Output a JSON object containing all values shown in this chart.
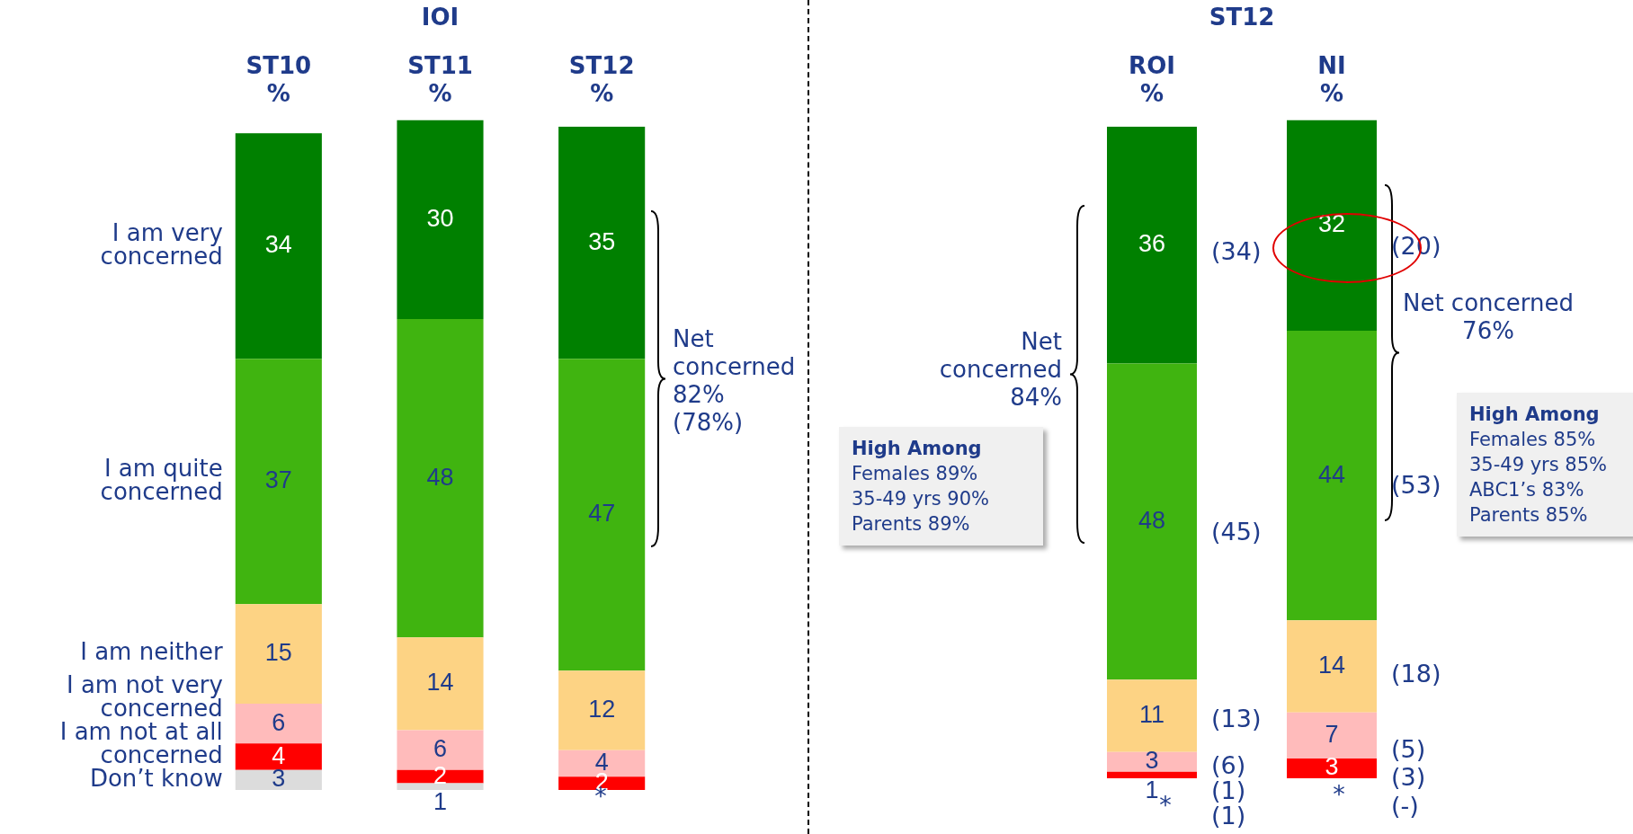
{
  "chart_data": [
    {
      "type": "bar",
      "title": "IOI",
      "categories": [
        "ST10\n%",
        "ST11\n%",
        "ST12\n%"
      ],
      "stacked": true,
      "tick_labels": "x",
      "series": [
        {
          "name": "Don’t know",
          "color": "#dcdcdc",
          "values": [
            3,
            1,
            null
          ],
          "value_labels": [
            "3",
            "1",
            null
          ]
        },
        {
          "name": "I am not at all concerned",
          "color": "#ff0000",
          "values": [
            4,
            2,
            2
          ],
          "value_labels": [
            "4",
            "2",
            "2"
          ]
        },
        {
          "name": "I am not very concerned",
          "color": "#ffbbbb",
          "values": [
            6,
            6,
            4
          ],
          "value_labels": [
            "6",
            "6",
            "4"
          ]
        },
        {
          "name": "I am neither",
          "color": "#fdd384",
          "values": [
            15,
            14,
            12
          ],
          "value_labels": [
            "15",
            "14",
            "12"
          ]
        },
        {
          "name": "I am quite concerned",
          "color": "#40b410",
          "values": [
            37,
            48,
            47
          ],
          "value_labels": [
            "37",
            "48",
            "47"
          ]
        },
        {
          "name": "I am very concerned",
          "color": "#008000",
          "values": [
            34,
            30,
            35
          ],
          "value_labels": [
            "34",
            "30",
            "35"
          ]
        }
      ],
      "annotations": [
        "Net\nconcerned\n82%\n(78%)",
        "*"
      ]
    },
    {
      "type": "bar",
      "title": "ST12",
      "categories": [
        "ROI\n%",
        "NI\n%"
      ],
      "stacked": true,
      "tick_labels": "x",
      "series": [
        {
          "color": "#ff0000",
          "values": [
            1,
            3
          ],
          "value_labels": [
            "1",
            "3"
          ]
        },
        {
          "color": "#ffbbbb",
          "values": [
            3,
            7
          ],
          "value_labels": [
            "3",
            "7"
          ]
        },
        {
          "color": "#fdd384",
          "values": [
            11,
            14
          ],
          "value_labels": [
            "11",
            "14"
          ]
        },
        {
          "color": "#40b410",
          "values": [
            48,
            44
          ],
          "value_labels": [
            "48",
            "44"
          ]
        },
        {
          "color": "#008000",
          "values": [
            36,
            32
          ],
          "value_labels": [
            "36",
            "32"
          ]
        }
      ],
      "annotations": [
        "Net\nconcerned\n84%",
        "Net concerned\n76%",
        "High Among\nFemales 89%\n35-49 yrs 90%\nParents 89%",
        "High Among\nFemales 85%\n35-49 yrs 85%\nABC1’s 83%\nParents 85%",
        "(34)",
        "(45)",
        "(13)",
        "(6)",
        "(1)",
        "(1)",
        "(20)",
        "(53)",
        "(18)",
        "(5)",
        "(3)",
        "(-)",
        "*",
        "*"
      ]
    }
  ]
}
